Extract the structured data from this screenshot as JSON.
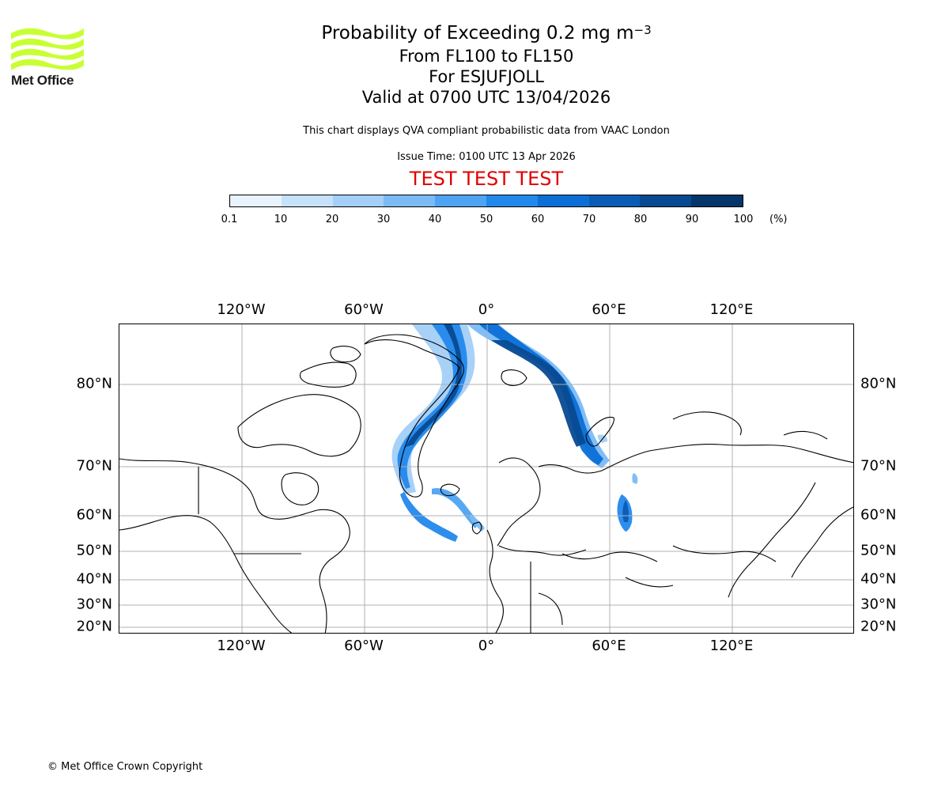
{
  "header": {
    "logo_text": "Met Office",
    "title_main": "Probability of Exceeding 0.2 mg m",
    "title_superscript": "−3",
    "title_levels": "From FL100 to FL150",
    "title_target": "For ESJUFJOLL",
    "title_valid": "Valid at 0700 UTC 13/04/2026",
    "description": "This chart displays QVA compliant probabilistic data from VAAC London",
    "issue_time": "Issue Time: 0100 UTC 13 Apr 2026",
    "test_banner": "TEST TEST TEST"
  },
  "colors": {
    "logo_green": "#c8ff32",
    "test_red": "#e00000",
    "scale": [
      "#e8f3fd",
      "#c6e2fb",
      "#a3cff8",
      "#7bbaf5",
      "#4ea3f2",
      "#2288ec",
      "#0b6fd6",
      "#095cb4",
      "#074a92",
      "#04356b"
    ]
  },
  "colorbar": {
    "ticks": [
      "0.1",
      "10",
      "20",
      "30",
      "40",
      "50",
      "60",
      "70",
      "80",
      "90",
      "100"
    ],
    "unit": "(%)"
  },
  "map": {
    "projection": "polar-stereographic-like",
    "lon_labels": [
      "120°W",
      "60°W",
      "0°",
      "60°E",
      "120°E"
    ],
    "lat_labels": [
      "80°N",
      "70°N",
      "60°N",
      "50°N",
      "40°N",
      "30°N",
      "20°N"
    ],
    "ash_plume_regions": [
      "Greenland Sea to Svalbard",
      "East of Svalbard to Novaya Zemlya",
      "South of Greenland / North Atlantic",
      "Iceland",
      "Western Siberia"
    ]
  },
  "footer": {
    "copyright": "© Met Office Crown Copyright"
  }
}
